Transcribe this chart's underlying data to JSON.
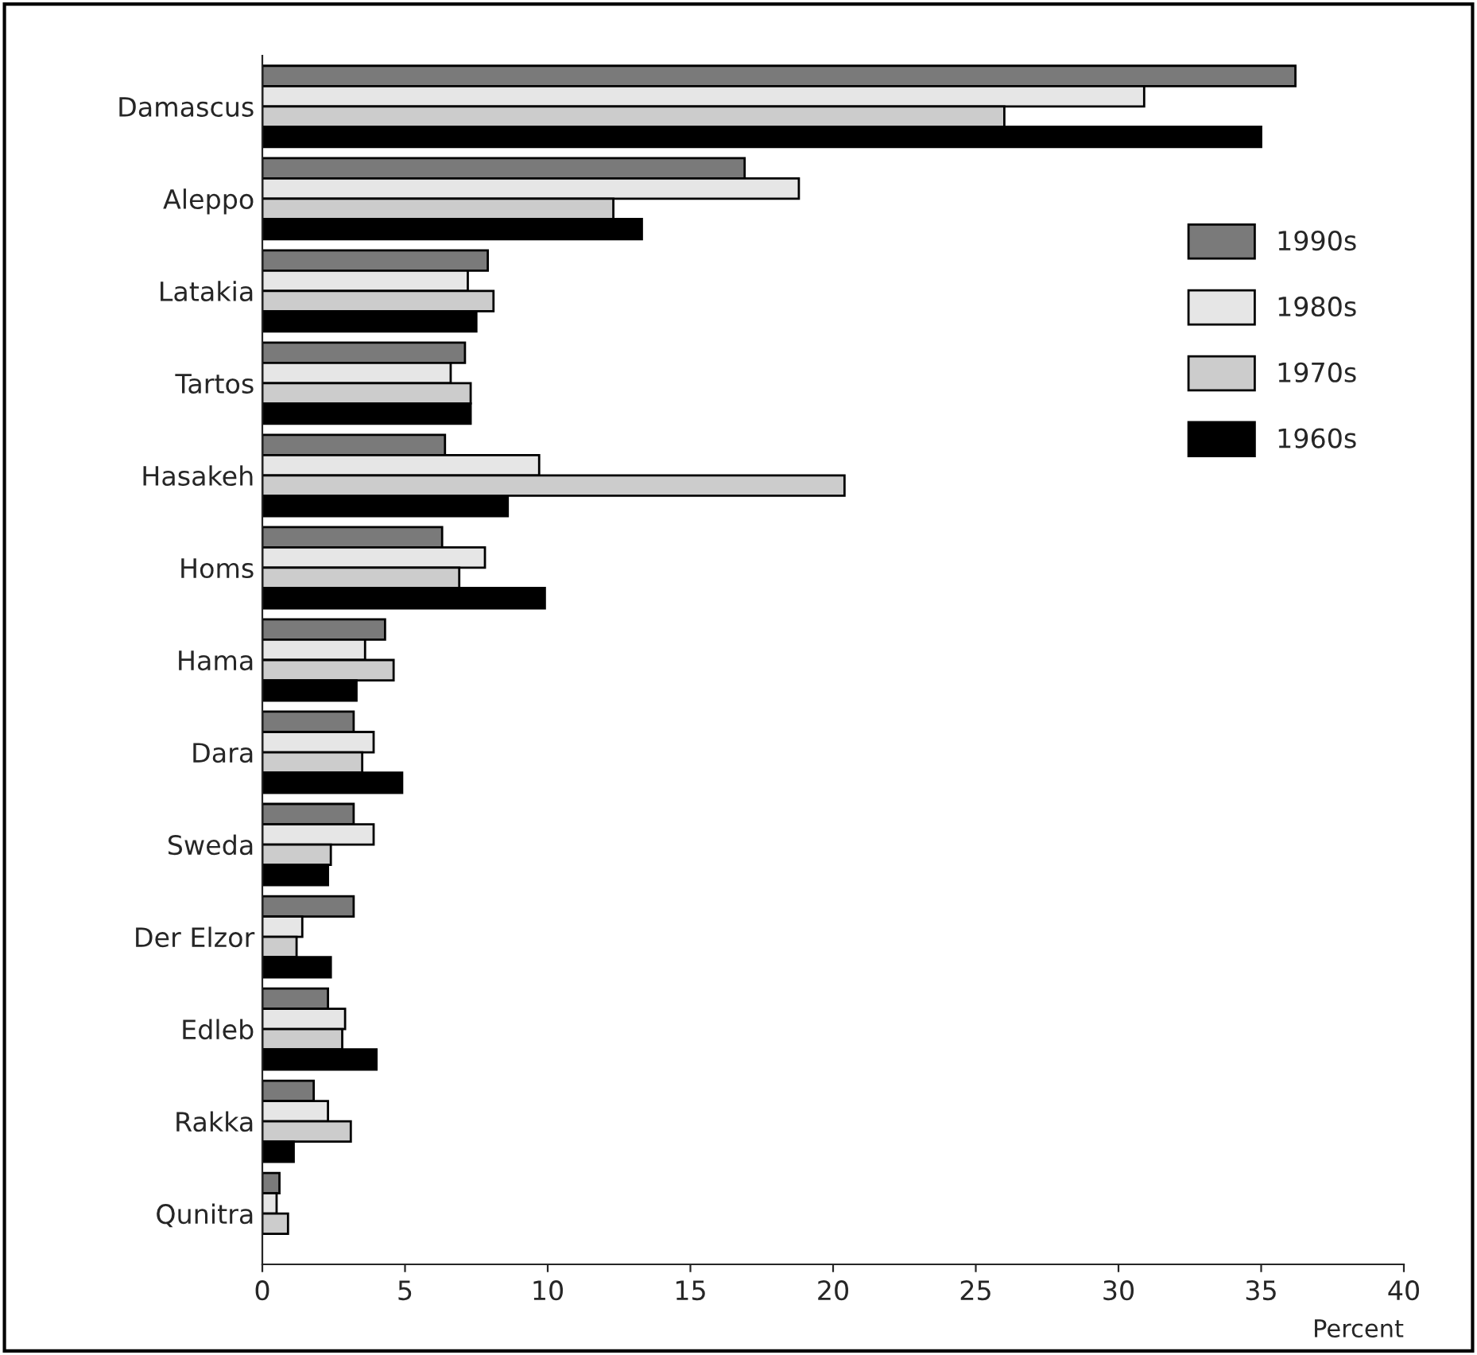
{
  "chart_data": {
    "type": "bar",
    "orientation": "horizontal",
    "xlabel": "Percent",
    "categories": [
      "Damascus",
      "Aleppo",
      "Latakia",
      "Tartos",
      "Hasakeh",
      "Homs",
      "Hama",
      "Dara",
      "Sweda",
      "Der Elzor",
      "Edleb",
      "Rakka",
      "Qunitra"
    ],
    "series": [
      {
        "name": "1990s",
        "color": "#7a7a7a",
        "values": [
          36.2,
          16.9,
          7.9,
          7.1,
          6.4,
          6.3,
          4.3,
          3.2,
          3.2,
          3.2,
          2.3,
          1.8,
          0.6
        ]
      },
      {
        "name": "1980s",
        "color": "#e6e6e6",
        "values": [
          30.9,
          18.8,
          7.2,
          6.6,
          9.7,
          7.8,
          3.6,
          3.9,
          3.9,
          1.4,
          2.9,
          2.3,
          0.5
        ]
      },
      {
        "name": "1970s",
        "color": "#cccccc",
        "values": [
          26.0,
          12.3,
          8.1,
          7.3,
          20.4,
          6.9,
          4.6,
          3.5,
          2.4,
          1.2,
          2.8,
          3.1,
          0.9
        ]
      },
      {
        "name": "1960s",
        "color": "#000000",
        "values": [
          35.0,
          13.3,
          7.5,
          7.3,
          8.6,
          9.9,
          3.3,
          4.9,
          2.3,
          2.4,
          4.0,
          1.1,
          null
        ]
      }
    ],
    "xlim": [
      0,
      40
    ],
    "xticks": [
      0,
      5,
      10,
      15,
      20,
      25,
      30,
      35,
      40
    ],
    "grid": false,
    "legend": "top right"
  }
}
